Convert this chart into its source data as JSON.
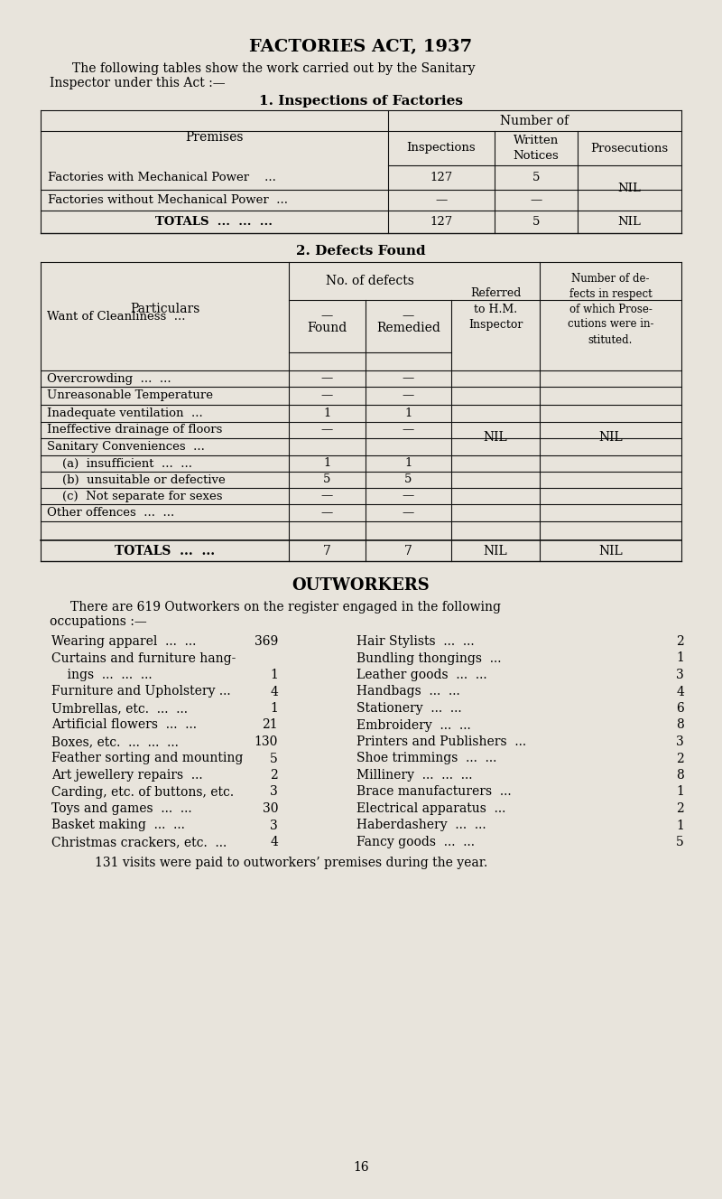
{
  "bg_color": "#e8e4dc",
  "title": "FACTORIES ACT, 1937",
  "table1_title": "1. Inspections of Factories",
  "table2_title": "2. Defects Found",
  "outworkers_title": "OUTWORKERS",
  "outworkers_intro_1": "There are 619 Outworkers on the register engaged in the following",
  "outworkers_intro_2": "occupations :—",
  "outworkers_left": [
    [
      "Wearing apparel  ...  ...",
      "369"
    ],
    [
      "Curtains and furniture hang-",
      ""
    ],
    [
      "    ings  ...  ...  ...",
      "1"
    ],
    [
      "Furniture and Upholstery ...",
      "4"
    ],
    [
      "Umbrellas, etc.  ...  ...",
      "1"
    ],
    [
      "Artificial flowers  ...  ...",
      "21"
    ],
    [
      "Boxes, etc.  ...  ...  ...",
      "130"
    ],
    [
      "Feather sorting and mounting",
      "5"
    ],
    [
      "Art jewellery repairs  ...",
      "2"
    ],
    [
      "Carding, etc. of buttons, etc.",
      "3"
    ],
    [
      "Toys and games  ...  ...",
      "30"
    ],
    [
      "Basket making  ...  ...",
      "3"
    ],
    [
      "Christmas crackers, etc.  ...",
      "4"
    ]
  ],
  "outworkers_right": [
    [
      "Hair Stylists  ...  ...",
      "2"
    ],
    [
      "Bundling thongings  ...",
      "1"
    ],
    [
      "Leather goods  ...  ...",
      "3"
    ],
    [
      "Handbags  ...  ...",
      "4"
    ],
    [
      "Stationery  ...  ...",
      "6"
    ],
    [
      "Embroidery  ...  ...",
      "8"
    ],
    [
      "Printers and Publishers  ...",
      "3"
    ],
    [
      "Shoe trimmings  ...  ...",
      "2"
    ],
    [
      "Millinery  ...  ...  ...",
      "8"
    ],
    [
      "Brace manufacturers  ...",
      "1"
    ],
    [
      "Electrical apparatus  ...",
      "2"
    ],
    [
      "Haberdashery  ...  ...",
      "1"
    ],
    [
      "Fancy goods  ...  ...",
      "5"
    ]
  ],
  "outworkers_footer": "131 visits were paid to outworkers’ premises during the year.",
  "page_number": "16"
}
